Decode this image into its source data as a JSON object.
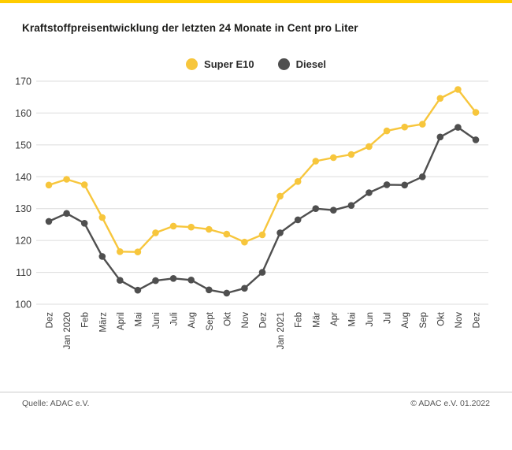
{
  "page": {
    "title": "Kraftstoffpreisentwicklung der letzten 24 Monate in Cent pro Liter",
    "footer_left": "Quelle: ADAC e.V.",
    "footer_right": "© ADAC e.V. 01.2022"
  },
  "colors": {
    "accent_bar": "#FFCC00",
    "grid": "#DCDCDC",
    "tick_text": "#3A3A3A"
  },
  "chart_data": {
    "type": "line",
    "title": "Kraftstoffpreisentwicklung der letzten 24 Monate in Cent pro Liter",
    "xlabel": "",
    "ylabel": "Cent pro Liter",
    "ylim": [
      100,
      170
    ],
    "ytick_step": 10,
    "grid": true,
    "legend_position": "top-center",
    "categories": [
      "Dez",
      "Jan 2020",
      "Feb",
      "März",
      "April",
      "Mai",
      "Juni",
      "Juli",
      "Aug",
      "Sept",
      "Okt",
      "Nov",
      "Dez",
      "Jan 2021",
      "Feb",
      "Mär",
      "Apr",
      "Mai",
      "Jun",
      "Jul",
      "Aug",
      "Sep",
      "Okt",
      "Nov",
      "Dez"
    ],
    "series": [
      {
        "name": "Super E10",
        "color": "#F7C63C",
        "values": [
          137.4,
          139.2,
          137.5,
          127.2,
          116.5,
          116.4,
          122.4,
          124.5,
          124.2,
          123.5,
          122.0,
          119.5,
          121.8,
          133.9,
          138.5,
          144.9,
          146.0,
          147.0,
          149.5,
          154.4,
          155.6,
          156.5,
          164.6,
          167.4,
          160.2
        ]
      },
      {
        "name": "Diesel",
        "color": "#4F4F4F",
        "values": [
          126.0,
          128.5,
          125.4,
          115.0,
          107.5,
          104.4,
          107.4,
          108.1,
          107.6,
          104.5,
          103.5,
          105.0,
          110.0,
          122.4,
          126.5,
          130.0,
          129.5,
          131.0,
          135.0,
          137.5,
          137.4,
          140.0,
          152.5,
          155.5,
          151.6
        ]
      }
    ]
  }
}
